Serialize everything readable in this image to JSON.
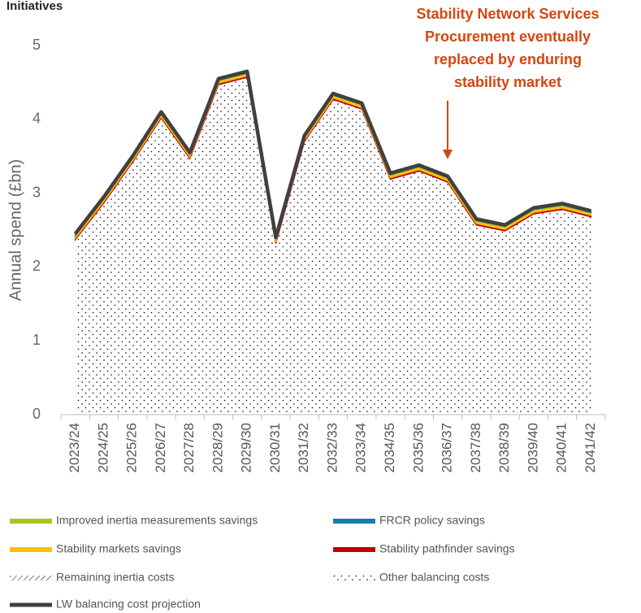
{
  "chart_data": {
    "type": "stacked-area",
    "title": "Initiatives",
    "ylabel": "Annual spend (£bn)",
    "annotation": [
      "Stability Network Services",
      "Procurement eventually",
      "replaced by enduring",
      "stability market"
    ],
    "annotation_color": "#d4460f",
    "categories": [
      "2023/24",
      "2024/25",
      "2025/26",
      "2026/27",
      "2027/28",
      "2028/29",
      "2029/30",
      "2030/31",
      "2031/32",
      "2032/33",
      "2033/34",
      "2034/35",
      "2035/36",
      "2036/37",
      "2037/38",
      "2038/39",
      "2039/40",
      "2040/41",
      "2041/42"
    ],
    "ylim": [
      0,
      5
    ],
    "yticks": [
      0,
      1,
      2,
      3,
      4,
      5
    ],
    "series": [
      {
        "name": "Remaining inertia costs",
        "color": "#000000",
        "pattern": "hatch",
        "values": [
          0,
          0,
          0,
          0,
          0,
          0,
          0,
          0,
          0,
          0,
          0,
          0,
          0,
          0,
          0,
          0,
          0,
          0,
          0
        ]
      },
      {
        "name": "Other balancing costs",
        "color": "#000000",
        "pattern": "dots",
        "values": [
          2.37,
          2.87,
          3.42,
          4.02,
          3.47,
          4.47,
          4.57,
          2.32,
          3.7,
          4.27,
          4.14,
          3.19,
          3.3,
          3.15,
          2.57,
          2.49,
          2.72,
          2.78,
          2.68
        ]
      },
      {
        "name": "Stability pathfinder savings",
        "color": "#c00000",
        "values": [
          0.02,
          0.02,
          0.02,
          0.02,
          0.02,
          0.02,
          0.02,
          0.02,
          0.02,
          0.02,
          0.02,
          0.02,
          0.02,
          0.02,
          0.02,
          0.02,
          0.02,
          0.02,
          0.02
        ]
      },
      {
        "name": "Stability markets savings",
        "color": "#ffc000",
        "values": [
          0.03,
          0.03,
          0.03,
          0.03,
          0.03,
          0.03,
          0.03,
          0.03,
          0.03,
          0.03,
          0.03,
          0.03,
          0.03,
          0.03,
          0.03,
          0.03,
          0.03,
          0.03,
          0.03
        ]
      },
      {
        "name": "Improved inertia measurements savings",
        "color": "#a9c42a",
        "values": [
          0.01,
          0.01,
          0.01,
          0.01,
          0.01,
          0.01,
          0.01,
          0.01,
          0.01,
          0.01,
          0.01,
          0.01,
          0.01,
          0.01,
          0.01,
          0.01,
          0.01,
          0.01,
          0.01
        ]
      },
      {
        "name": "FRCR policy savings",
        "color": "#1f77b4",
        "values": [
          0.02,
          0.02,
          0.02,
          0.02,
          0.02,
          0.02,
          0.02,
          0.02,
          0.02,
          0.02,
          0.02,
          0.02,
          0.02,
          0.02,
          0.02,
          0.02,
          0.02,
          0.02,
          0.02
        ]
      }
    ],
    "line": {
      "name": "LW balancing cost projection",
      "color": "#404040",
      "values": [
        2.45,
        2.95,
        3.5,
        4.1,
        3.55,
        4.55,
        4.65,
        2.4,
        3.78,
        4.35,
        4.22,
        3.27,
        3.38,
        3.23,
        2.65,
        2.57,
        2.8,
        2.86,
        2.76
      ]
    }
  }
}
